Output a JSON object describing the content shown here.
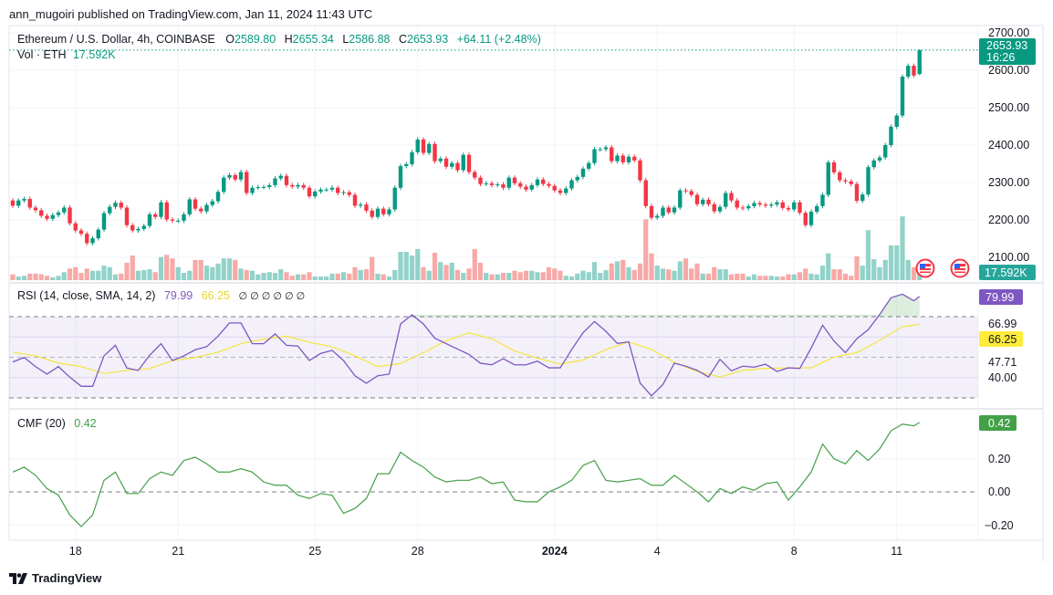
{
  "published": "ann_mugoiri published on TradingView.com, Jan 11, 2024 11:43 UTC",
  "footer_logo": "TradingView",
  "legend": {
    "symbol": "Ethereum / U.S. Dollar, 4h, COINBASE",
    "o_label": "O",
    "o": "2589.80",
    "h_label": "H",
    "h": "2655.34",
    "l_label": "L",
    "l": "2586.88",
    "c_label": "C",
    "c": "2653.93",
    "change": "+64.11 (+2.48%)",
    "vol_label": "Vol · ETH",
    "vol_value": "17.592K"
  },
  "price_axis": {
    "ticks": [
      "2700.00",
      "2600.00",
      "2500.00",
      "2400.00",
      "2300.00",
      "2200.00",
      "2100.00"
    ],
    "last_price": "2653.93",
    "countdown": "16:26",
    "volume_badge": "17.592K"
  },
  "rsi": {
    "label": "RSI (14, close, SMA, 14, 2)",
    "value": "79.99",
    "ma_value": "66.25",
    "extra": "∅ ∅ ∅ ∅ ∅ ∅",
    "axis_labels": [
      "66.99",
      "47.71",
      "40.00"
    ]
  },
  "cmf": {
    "label": "CMF (20)",
    "value": "0.42",
    "axis_labels": [
      "0.20",
      "0.00",
      "−0.20"
    ]
  },
  "colors": {
    "up": "#089981",
    "down": "#f23645",
    "vol_up": "#92d2c9",
    "vol_down": "#f7a9a7",
    "rsi": "#7e57c2",
    "rsi_ma": "#f5e63c",
    "cmf": "#43a047"
  },
  "chart_data": [
    {
      "type": "candlestick",
      "title": "Ethereum / U.S. Dollar, 4h, COINBASE",
      "ylim": [
        2080,
        2720
      ],
      "first_open": 2252,
      "closes": [
        2238,
        2252,
        2256,
        2233,
        2226,
        2211,
        2203,
        2213,
        2220,
        2233,
        2191,
        2172,
        2163,
        2138,
        2151,
        2174,
        2218,
        2235,
        2246,
        2233,
        2186,
        2172,
        2176,
        2184,
        2215,
        2208,
        2247,
        2201,
        2198,
        2198,
        2215,
        2255,
        2230,
        2223,
        2240,
        2250,
        2275,
        2313,
        2320,
        2308,
        2328,
        2272,
        2286,
        2288,
        2288,
        2293,
        2311,
        2318,
        2293,
        2289,
        2293,
        2286,
        2263,
        2276,
        2281,
        2281,
        2286,
        2272,
        2274,
        2267,
        2238,
        2241,
        2225,
        2208,
        2230,
        2215,
        2228,
        2286,
        2344,
        2349,
        2381,
        2415,
        2379,
        2403,
        2357,
        2364,
        2342,
        2352,
        2333,
        2374,
        2328,
        2313,
        2296,
        2298,
        2293,
        2295,
        2286,
        2313,
        2298,
        2289,
        2281,
        2293,
        2308,
        2296,
        2291,
        2279,
        2272,
        2284,
        2306,
        2315,
        2337,
        2352,
        2389,
        2389,
        2394,
        2357,
        2372,
        2354,
        2369,
        2359,
        2306,
        2237,
        2206,
        2211,
        2233,
        2220,
        2233,
        2279,
        2277,
        2267,
        2242,
        2254,
        2242,
        2223,
        2235,
        2272,
        2252,
        2233,
        2231,
        2237,
        2245,
        2241,
        2238,
        2241,
        2247,
        2232,
        2228,
        2247,
        2219,
        2186,
        2222,
        2237,
        2267,
        2354,
        2327,
        2306,
        2303,
        2296,
        2251,
        2268,
        2341,
        2359,
        2367,
        2400,
        2449,
        2479,
        2583,
        2612,
        2586,
        2653.93
      ],
      "last_bar": {
        "open": 2589.8,
        "high": 2655.34,
        "low": 2586.88,
        "close": 2653.93
      },
      "volume_k": [
        8,
        5,
        6,
        9,
        9,
        8,
        6,
        4,
        6,
        11,
        16,
        18,
        10,
        16,
        13,
        13,
        20,
        18,
        8,
        9,
        24,
        34,
        13,
        14,
        15,
        11,
        32,
        35,
        30,
        18,
        10,
        13,
        28,
        28,
        20,
        18,
        23,
        30,
        30,
        28,
        16,
        14,
        13,
        8,
        10,
        11,
        10,
        15,
        11,
        6,
        8,
        8,
        11,
        5,
        5,
        5,
        9,
        9,
        11,
        9,
        18,
        14,
        15,
        32,
        9,
        8,
        5,
        14,
        39,
        39,
        34,
        43,
        18,
        13,
        38,
        25,
        21,
        24,
        14,
        10,
        16,
        43,
        24,
        10,
        8,
        8,
        10,
        10,
        13,
        11,
        13,
        13,
        11,
        11,
        18,
        16,
        13,
        6,
        5,
        9,
        13,
        11,
        25,
        10,
        14,
        23,
        26,
        28,
        18,
        14,
        23,
        84,
        37,
        20,
        16,
        15,
        13,
        26,
        30,
        16,
        23,
        9,
        9,
        18,
        15,
        15,
        8,
        9,
        9,
        5,
        8,
        6,
        6,
        6,
        5,
        5,
        8,
        8,
        11,
        16,
        9,
        8,
        20,
        37,
        15,
        15,
        9,
        6,
        33,
        20,
        69,
        29,
        18,
        28,
        48,
        48,
        88,
        28,
        18,
        17.592
      ],
      "x_ticks": [
        {
          "label": "18",
          "bar": 12
        },
        {
          "label": "21",
          "bar": 30
        },
        {
          "label": "25",
          "bar": 54
        },
        {
          "label": "28",
          "bar": 72
        },
        {
          "label": "2024",
          "bar": 96,
          "bold": true
        },
        {
          "label": "4",
          "bar": 114
        },
        {
          "label": "8",
          "bar": 138
        },
        {
          "label": "11",
          "bar": 156
        }
      ]
    },
    {
      "type": "line",
      "title": "RSI (14, close, SMA, 14, 2)",
      "ylim": [
        20,
        90
      ],
      "bands": [
        70,
        50,
        30
      ],
      "rsi_every_2nd_bar": [
        47.7,
        49.9,
        45.4,
        41.7,
        45.4,
        40.2,
        35.7,
        35.7,
        50.7,
        55.9,
        44.7,
        43.5,
        51.0,
        56.7,
        48.4,
        50.7,
        53.7,
        55.2,
        60.4,
        66.9,
        66.9,
        56.7,
        56.7,
        61.5,
        55.9,
        55.5,
        48.4,
        51.9,
        53.4,
        48.4,
        40.9,
        37.2,
        40.9,
        41.7,
        66.4,
        70.9,
        66.4,
        59.4,
        56.7,
        54.0,
        51.4,
        47.1,
        46.3,
        49.3,
        46.3,
        46.3,
        48.1,
        44.8,
        44.8,
        53.8,
        62.1,
        67.6,
        62.8,
        56.8,
        57.6,
        37.3,
        31.0,
        36.6,
        47.1,
        45.6,
        43.6,
        40.3,
        49.0,
        43.3,
        45.6,
        45.1,
        46.6,
        43.0,
        44.8,
        44.5,
        54.6,
        65.8,
        58.0,
        52.3,
        59.1,
        63.6,
        71.0,
        79.3,
        81.1,
        77.8
      ],
      "rsi_last": 79.99,
      "sma_every_4th_bar": [
        52.5,
        50.7,
        47.2,
        45.4,
        42.0,
        43.5,
        44.4,
        48.4,
        49.9,
        52.5,
        56.7,
        58.9,
        60.4,
        57.4,
        55.2,
        50.7,
        45.4,
        46.9,
        52.2,
        58.2,
        62.0,
        59.1,
        53.1,
        49.6,
        46.6,
        48.6,
        53.8,
        57.6,
        53.8,
        47.5,
        43.0,
        40.3,
        43.6,
        44.5,
        44.8,
        44.8,
        50.1,
        52.3,
        58.3,
        65.1
      ],
      "sma_last": 66.25
    },
    {
      "type": "line",
      "title": "CMF (20)",
      "ylim": [
        -0.28,
        0.48
      ],
      "cmf_every_2nd_bar": [
        0.12,
        0.15,
        0.1,
        0.02,
        -0.02,
        -0.14,
        -0.21,
        -0.14,
        0.07,
        0.12,
        -0.01,
        -0.01,
        0.08,
        0.12,
        0.1,
        0.19,
        0.21,
        0.17,
        0.12,
        0.12,
        0.14,
        0.12,
        0.06,
        0.04,
        0.04,
        -0.02,
        -0.04,
        -0.01,
        -0.02,
        -0.13,
        -0.1,
        -0.04,
        0.11,
        0.11,
        0.24,
        0.19,
        0.15,
        0.09,
        0.06,
        0.07,
        0.07,
        0.09,
        0.05,
        0.06,
        -0.05,
        -0.06,
        -0.06,
        0.0,
        0.03,
        0.07,
        0.16,
        0.19,
        0.07,
        0.06,
        0.07,
        0.08,
        0.04,
        0.04,
        0.1,
        0.05,
        0.0,
        -0.06,
        0.02,
        -0.01,
        0.03,
        0.01,
        0.05,
        0.06,
        -0.05,
        0.03,
        0.12,
        0.29,
        0.2,
        0.17,
        0.25,
        0.19,
        0.26,
        0.37,
        0.41,
        0.4
      ],
      "cmf_last": 0.42
    }
  ]
}
